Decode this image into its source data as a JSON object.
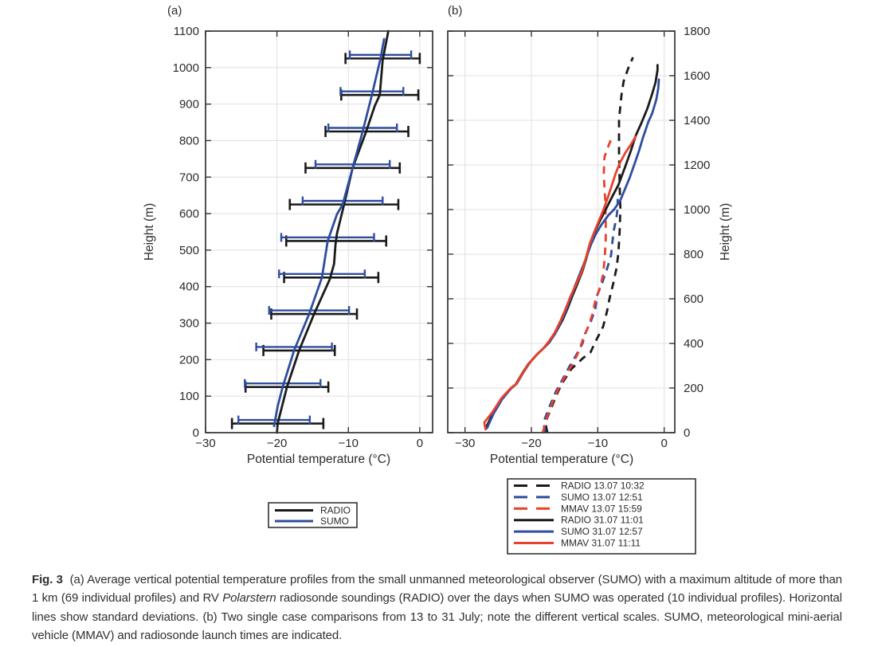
{
  "page": {
    "background": "#ffffff"
  },
  "colors": {
    "black": "#1a1a1a",
    "blue": "#2e4d9e",
    "red": "#e8412c",
    "grid": "#e2e2e2",
    "axis": "#333333",
    "text": "#2b2b2b"
  },
  "chart_data": [
    {
      "type": "line",
      "panel_label": "(a)",
      "xlabel": "Potential temperature (°C)",
      "ylabel": "Height (m)",
      "xlim": [
        -30,
        1.8
      ],
      "ylim": [
        0,
        1100
      ],
      "xticks": [
        -30,
        -20,
        -10,
        0
      ],
      "yticks": [
        0,
        100,
        200,
        300,
        400,
        500,
        600,
        700,
        800,
        900,
        1000,
        1100
      ],
      "yaxis_side": "left",
      "grid": true,
      "legend": {
        "position": "below-center",
        "entries": [
          {
            "label": "RADIO",
            "color_key": "black",
            "style": "solid"
          },
          {
            "label": "SUMO",
            "color_key": "blue",
            "style": "solid"
          }
        ]
      },
      "series": [
        {
          "name": "RADIO",
          "color_key": "black",
          "style": "solid",
          "points": [
            [
              -20.0,
              0
            ],
            [
              -19.9,
              25
            ],
            [
              -18.6,
              125
            ],
            [
              -16.9,
              225
            ],
            [
              -14.8,
              325
            ],
            [
              -12.6,
              420
            ],
            [
              -12.0,
              462
            ],
            [
              -11.8,
              515
            ],
            [
              -11.6,
              545
            ],
            [
              -10.6,
              625
            ],
            [
              -9.4,
              725
            ],
            [
              -7.6,
              820
            ],
            [
              -6.3,
              895
            ],
            [
              -5.6,
              925
            ],
            [
              -5.2,
              1020
            ],
            [
              -4.4,
              1100
            ]
          ]
        },
        {
          "name": "SUMO",
          "color_key": "blue",
          "style": "solid",
          "points": [
            [
              -20.4,
              18
            ],
            [
              -19.9,
              72
            ],
            [
              -19.2,
              125
            ],
            [
              -17.6,
              225
            ],
            [
              -15.5,
              325
            ],
            [
              -13.7,
              425
            ],
            [
              -12.9,
              525
            ],
            [
              -11.6,
              598
            ],
            [
              -10.8,
              625
            ],
            [
              -9.4,
              725
            ],
            [
              -8.0,
              825
            ],
            [
              -6.7,
              925
            ],
            [
              -5.5,
              1025
            ],
            [
              -5.0,
              1078
            ]
          ]
        }
      ],
      "error_bars": {
        "heights": [
          25,
          125,
          225,
          325,
          425,
          525,
          625,
          725,
          825,
          925,
          1025
        ],
        "radio_mean": [
          -19.9,
          -18.6,
          -16.9,
          -14.8,
          -12.4,
          -11.7,
          -10.6,
          -9.4,
          -7.4,
          -5.6,
          -5.2
        ],
        "radio_std": [
          6.4,
          5.8,
          5.0,
          6.0,
          6.6,
          7.0,
          7.6,
          6.6,
          5.8,
          5.4,
          5.2
        ],
        "sumo_mean": [
          -20.4,
          -19.2,
          -17.6,
          -15.5,
          -13.7,
          -12.9,
          -10.8,
          -9.4,
          -8.0,
          -6.7,
          -5.5
        ],
        "sumo_std": [
          5.0,
          5.3,
          5.3,
          5.6,
          6.0,
          6.5,
          5.6,
          5.2,
          4.8,
          4.4,
          4.3
        ]
      }
    },
    {
      "type": "line",
      "panel_label": "(b)",
      "xlabel": "Potential temperature (°C)",
      "ylabel": "Height (m)",
      "xlim": [
        -32.6,
        1.6
      ],
      "ylim": [
        0,
        1800
      ],
      "xticks": [
        -30,
        -20,
        -10,
        0
      ],
      "yticks": [
        0,
        200,
        400,
        600,
        800,
        1000,
        1200,
        1400,
        1600,
        1800
      ],
      "yaxis_side": "right",
      "grid": true,
      "legend": {
        "position": "below-center",
        "entries": [
          {
            "label": "RADIO 13.07 10:32",
            "color_key": "black",
            "style": "dashed"
          },
          {
            "label": "SUMO 13.07 12:51",
            "color_key": "blue",
            "style": "dashed"
          },
          {
            "label": "MMAV 13.07 15:59",
            "color_key": "red",
            "style": "dashed"
          },
          {
            "label": "RADIO 31.07 11:01",
            "color_key": "black",
            "style": "solid"
          },
          {
            "label": "SUMO 31.07 12:57",
            "color_key": "blue",
            "style": "solid"
          },
          {
            "label": "MMAV 31.07 11:11",
            "color_key": "red",
            "style": "solid"
          }
        ]
      },
      "series": [
        {
          "name": "RADIO 13.07 10:32",
          "color_key": "black",
          "style": "dashed",
          "points": [
            [
              -17.6,
              0
            ],
            [
              -17.9,
              45
            ],
            [
              -17.1,
              105
            ],
            [
              -16.2,
              170
            ],
            [
              -15.5,
              215
            ],
            [
              -14.0,
              285
            ],
            [
              -12.2,
              335
            ],
            [
              -11.1,
              360
            ],
            [
              -10.4,
              405
            ],
            [
              -9.2,
              475
            ],
            [
              -8.6,
              545
            ],
            [
              -8.2,
              605
            ],
            [
              -7.7,
              665
            ],
            [
              -7.2,
              735
            ],
            [
              -6.9,
              805
            ],
            [
              -6.7,
              905
            ],
            [
              -6.6,
              1005
            ],
            [
              -6.7,
              1105
            ],
            [
              -6.8,
              1255
            ],
            [
              -6.8,
              1405
            ],
            [
              -6.4,
              1520
            ],
            [
              -6.1,
              1575
            ],
            [
              -5.4,
              1635
            ],
            [
              -4.7,
              1682
            ]
          ]
        },
        {
          "name": "SUMO 13.07 12:51",
          "color_key": "blue",
          "style": "dashed",
          "points": [
            [
              -17.9,
              0
            ],
            [
              -18.2,
              45
            ],
            [
              -17.3,
              115
            ],
            [
              -16.3,
              185
            ],
            [
              -15.2,
              245
            ],
            [
              -14.3,
              295
            ],
            [
              -13.3,
              345
            ],
            [
              -12.3,
              400
            ],
            [
              -11.9,
              445
            ],
            [
              -11.1,
              495
            ],
            [
              -10.4,
              550
            ],
            [
              -10.1,
              615
            ],
            [
              -9.3,
              675
            ],
            [
              -8.6,
              735
            ],
            [
              -8.0,
              795
            ],
            [
              -7.8,
              855
            ],
            [
              -7.6,
              905
            ],
            [
              -7.2,
              962
            ],
            [
              -7.0,
              1012
            ],
            [
              -7.0,
              1048
            ]
          ]
        },
        {
          "name": "MMAV 13.07 15:59",
          "color_key": "red",
          "style": "dashed",
          "points": [
            [
              -18.3,
              0
            ],
            [
              -17.7,
              65
            ],
            [
              -16.7,
              145
            ],
            [
              -15.8,
              205
            ],
            [
              -14.8,
              258
            ],
            [
              -13.7,
              312
            ],
            [
              -12.8,
              368
            ],
            [
              -12.2,
              422
            ],
            [
              -11.4,
              478
            ],
            [
              -10.8,
              532
            ],
            [
              -10.4,
              588
            ],
            [
              -9.7,
              648
            ],
            [
              -9.2,
              708
            ],
            [
              -9.0,
              772
            ],
            [
              -8.8,
              855
            ],
            [
              -8.8,
              955
            ],
            [
              -8.9,
              1055
            ],
            [
              -9.1,
              1155
            ],
            [
              -9.0,
              1235
            ],
            [
              -8.4,
              1285
            ],
            [
              -7.9,
              1322
            ]
          ]
        },
        {
          "name": "RADIO 31.07 11:01",
          "color_key": "black",
          "style": "solid",
          "points": [
            [
              -26.8,
              25
            ],
            [
              -25.9,
              80
            ],
            [
              -24.6,
              145
            ],
            [
              -23.2,
              195
            ],
            [
              -22.4,
              215
            ],
            [
              -21.4,
              265
            ],
            [
              -20.4,
              310
            ],
            [
              -19.2,
              350
            ],
            [
              -18.3,
              375
            ],
            [
              -17.3,
              405
            ],
            [
              -16.3,
              450
            ],
            [
              -15.3,
              505
            ],
            [
              -14.5,
              560
            ],
            [
              -13.8,
              615
            ],
            [
              -13.1,
              665
            ],
            [
              -12.3,
              725
            ],
            [
              -11.7,
              785
            ],
            [
              -11.1,
              850
            ],
            [
              -10.4,
              905
            ],
            [
              -9.6,
              955
            ],
            [
              -8.8,
              1000
            ],
            [
              -7.8,
              1060
            ],
            [
              -6.9,
              1110
            ],
            [
              -5.9,
              1190
            ],
            [
              -5.0,
              1265
            ],
            [
              -4.3,
              1330
            ],
            [
              -3.4,
              1390
            ],
            [
              -2.5,
              1455
            ],
            [
              -1.8,
              1520
            ],
            [
              -1.3,
              1570
            ],
            [
              -1.0,
              1625
            ],
            [
              -1.0,
              1648
            ]
          ]
        },
        {
          "name": "SUMO 31.07 12:57",
          "color_key": "blue",
          "style": "solid",
          "points": [
            [
              -26.7,
              20
            ],
            [
              -25.7,
              85
            ],
            [
              -24.4,
              150
            ],
            [
              -23.0,
              200
            ],
            [
              -22.2,
              220
            ],
            [
              -21.2,
              270
            ],
            [
              -20.2,
              315
            ],
            [
              -19.0,
              355
            ],
            [
              -18.1,
              380
            ],
            [
              -17.2,
              410
            ],
            [
              -16.4,
              445
            ],
            [
              -15.5,
              500
            ],
            [
              -14.7,
              555
            ],
            [
              -14.0,
              610
            ],
            [
              -13.4,
              660
            ],
            [
              -12.6,
              720
            ],
            [
              -11.8,
              780
            ],
            [
              -11.0,
              845
            ],
            [
              -10.3,
              890
            ],
            [
              -9.5,
              930
            ],
            [
              -8.4,
              975
            ],
            [
              -7.5,
              1002
            ],
            [
              -6.6,
              1042
            ],
            [
              -5.9,
              1092
            ],
            [
              -5.2,
              1142
            ],
            [
              -4.5,
              1202
            ],
            [
              -3.8,
              1262
            ],
            [
              -3.2,
              1322
            ],
            [
              -2.4,
              1392
            ],
            [
              -1.8,
              1432
            ],
            [
              -1.2,
              1492
            ],
            [
              -0.9,
              1542
            ],
            [
              -0.8,
              1583
            ]
          ]
        },
        {
          "name": "MMAV 31.07 11:11",
          "color_key": "red",
          "style": "solid",
          "points": [
            [
              -26.9,
              15
            ],
            [
              -27.1,
              45
            ],
            [
              -26.4,
              72
            ],
            [
              -25.8,
              95
            ],
            [
              -24.5,
              155
            ],
            [
              -23.1,
              200
            ],
            [
              -22.3,
              218
            ],
            [
              -21.3,
              268
            ],
            [
              -20.3,
              312
            ],
            [
              -19.1,
              352
            ],
            [
              -18.2,
              378
            ],
            [
              -17.4,
              408
            ],
            [
              -16.5,
              448
            ],
            [
              -15.6,
              503
            ],
            [
              -14.8,
              558
            ],
            [
              -14.1,
              612
            ],
            [
              -13.3,
              662
            ],
            [
              -12.4,
              722
            ],
            [
              -11.8,
              782
            ],
            [
              -11.2,
              848
            ],
            [
              -10.5,
              902
            ],
            [
              -9.8,
              952
            ],
            [
              -9.1,
              1002
            ],
            [
              -8.4,
              1062
            ],
            [
              -7.8,
              1117
            ],
            [
              -7.3,
              1162
            ],
            [
              -6.7,
              1207
            ],
            [
              -5.9,
              1252
            ],
            [
              -5.0,
              1292
            ],
            [
              -4.3,
              1327
            ]
          ]
        }
      ]
    }
  ],
  "caption": {
    "segments": [
      {
        "style": "bold",
        "text": "Fig. 3"
      },
      {
        "style": "normal",
        "text": "  (a) Average vertical potential temperature profiles from the small unmanned meteorological observer (SUMO) with a maximum altitude of more than 1 km (69 individual profiles) and RV "
      },
      {
        "style": "italic",
        "text": "Polarstern"
      },
      {
        "style": "normal",
        "text": " radiosonde soundings (RADIO) over the days when SUMO was operated (10 individual profiles). Horizontal lines show standard deviations. (b) Two single case comparisons from 13 to 31 July; note the different vertical scales. SUMO, meteorological mini-aerial vehicle (MMAV) and radiosonde launch times are indicated."
      }
    ]
  }
}
